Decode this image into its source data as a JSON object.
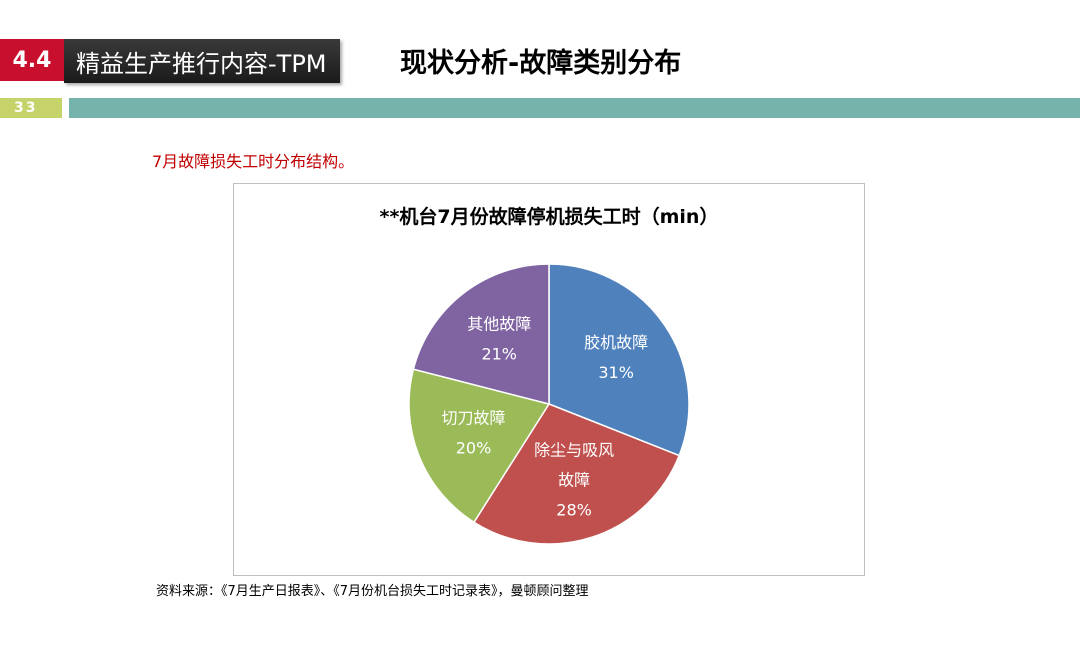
{
  "header": {
    "section_number": "4.4",
    "section_title": "精益生产推行内容-TPM",
    "page_title": "现状分析-故障类别分布",
    "page_number": "33"
  },
  "subtitle": "7月故障损失工时分布结构。",
  "source_note": "资料来源：《7月生产日报表》、《7月份机台损失工时记录表》，曼顿顾问整理",
  "colors": {
    "accent_red": "#c8102e",
    "teal": "#76b3aa",
    "page_badge": "#c5d36a",
    "subtitle_red": "#c00000"
  },
  "chart_data": {
    "type": "pie",
    "title": "**机台7月份故障停机损失工时（min）",
    "slices": [
      {
        "label": "胶机故障",
        "label_lines": [
          "胶机故障"
        ],
        "percent_label": "31%",
        "value": 31,
        "color": "#4f81bd"
      },
      {
        "label": "除尘与吸风故障",
        "label_lines": [
          "除尘与吸风",
          "故障"
        ],
        "percent_label": "28%",
        "value": 28,
        "color": "#c0504d"
      },
      {
        "label": "切刀故障",
        "label_lines": [
          "切刀故障"
        ],
        "percent_label": "20%",
        "value": 20,
        "color": "#9bbb59"
      },
      {
        "label": "其他故障",
        "label_lines": [
          "其他故障"
        ],
        "percent_label": "21%",
        "value": 21,
        "color": "#8064a2"
      }
    ]
  }
}
